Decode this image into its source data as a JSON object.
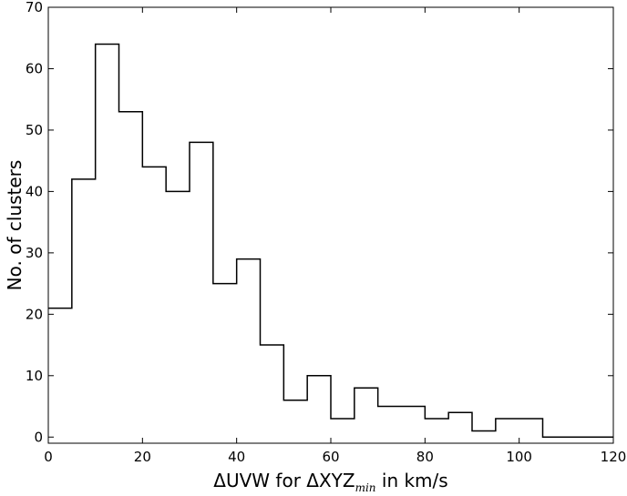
{
  "chart_data": {
    "type": "histogram",
    "bin_edges": [
      0,
      5,
      10,
      15,
      20,
      25,
      30,
      35,
      40,
      45,
      50,
      55,
      60,
      65,
      70,
      75,
      80,
      85,
      90,
      95,
      100,
      105,
      110,
      115,
      120
    ],
    "counts": [
      21,
      42,
      64,
      53,
      44,
      40,
      48,
      25,
      29,
      15,
      6,
      10,
      3,
      8,
      5,
      5,
      3,
      4,
      1,
      3,
      3,
      0,
      0,
      0
    ],
    "xlabel": {
      "prefix": "ΔUVW for ΔXYZ",
      "subscript": "min",
      "suffix": " in km/s"
    },
    "ylabel": "No. of clusters",
    "xlim": [
      0,
      120
    ],
    "ylim": [
      -1,
      70
    ],
    "xticks": [
      0,
      20,
      40,
      60,
      80,
      100,
      120
    ],
    "yticks": [
      0,
      10,
      20,
      30,
      40,
      50,
      60,
      70
    ],
    "grid": false,
    "histtype": "step",
    "line_color": "#000000",
    "background_color": "#ffffff"
  }
}
